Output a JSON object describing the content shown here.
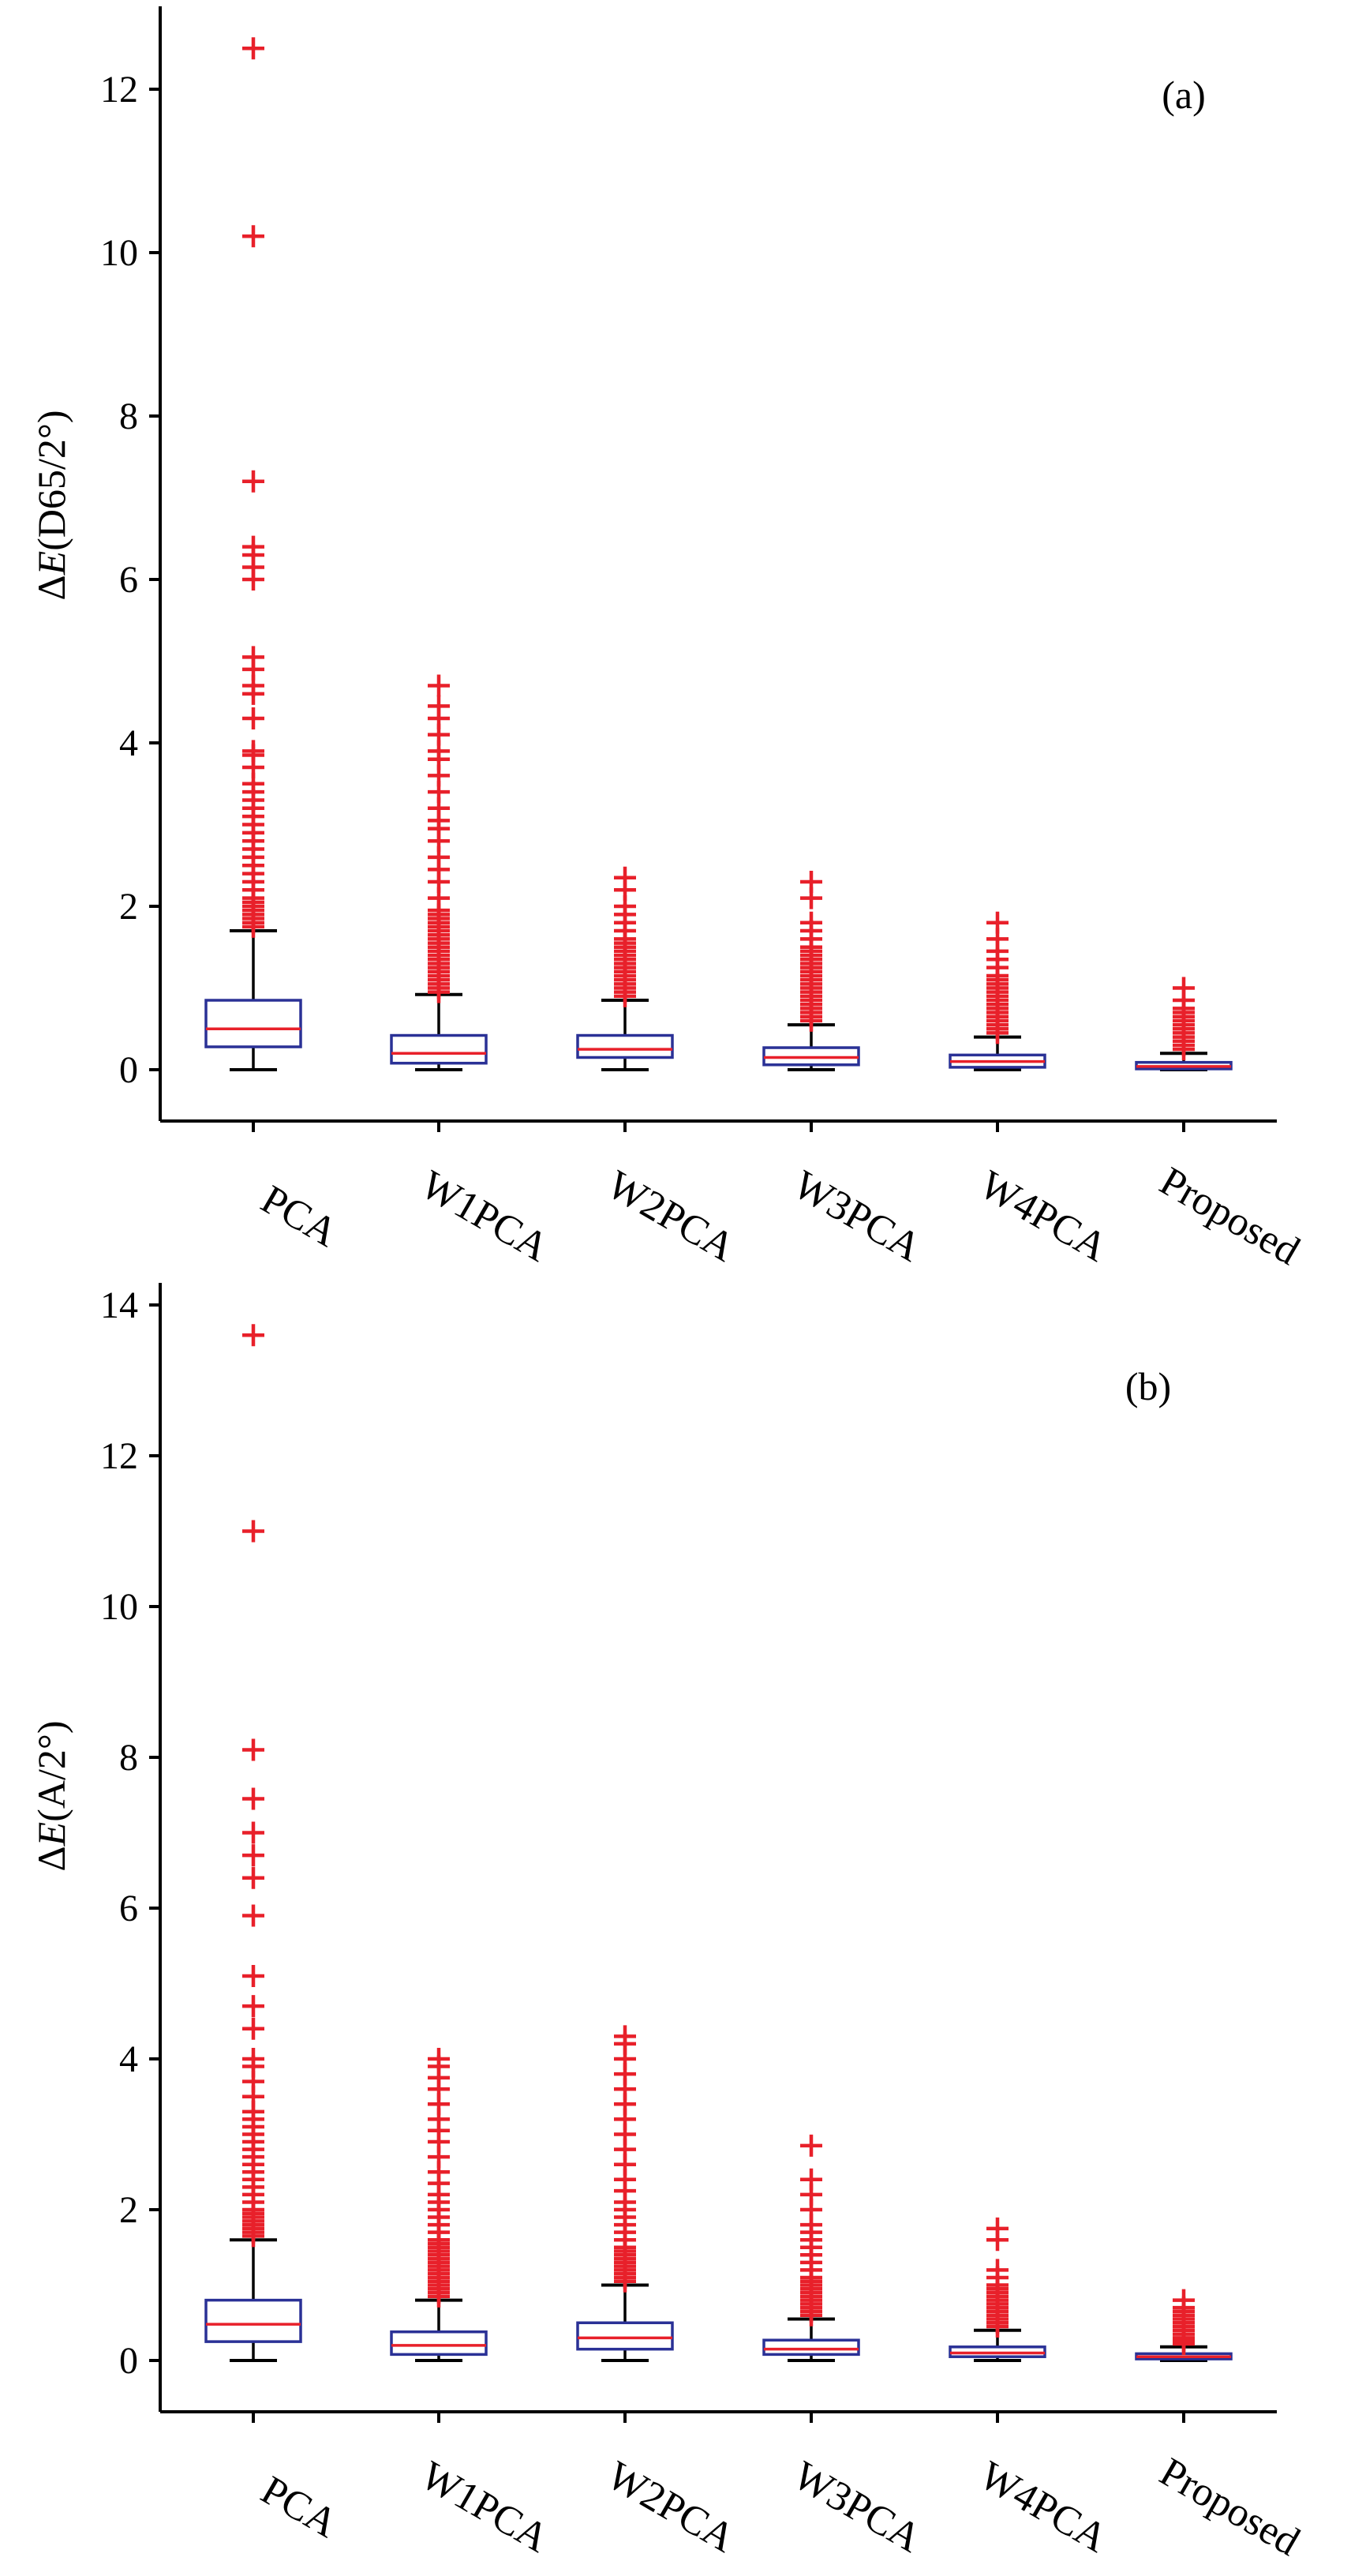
{
  "chart_data": [
    {
      "type": "box",
      "panel_label": "(a)",
      "ylabel_prefix": "Δ",
      "ylabel_var": "E",
      "ylabel_suffix": "(D65/2°)",
      "ylim": [
        0,
        13
      ],
      "yticks": [
        0,
        2,
        4,
        6,
        8,
        10,
        12
      ],
      "categories": [
        "PCA",
        "W1PCA",
        "W2PCA",
        "W3PCA",
        "W4PCA",
        "Proposed"
      ],
      "colors": {
        "box": "#2a3196",
        "median": "#e8202a",
        "outlier": "#e8202a",
        "whisker": "#000000"
      },
      "boxes": [
        {
          "whisker_low": 0,
          "q1": 0.28,
          "median": 0.5,
          "q3": 0.85,
          "whisker_high": 1.7,
          "outliers": [
            1.75,
            1.8,
            1.85,
            1.9,
            1.95,
            2.0,
            2.05,
            2.1,
            2.2,
            2.3,
            2.4,
            2.5,
            2.6,
            2.7,
            2.8,
            2.9,
            3.0,
            3.1,
            3.2,
            3.3,
            3.4,
            3.5,
            3.7,
            3.85,
            3.9,
            4.3,
            4.6,
            4.7,
            4.9,
            5.05,
            6.0,
            6.15,
            6.3,
            6.4,
            7.2,
            10.2,
            12.5
          ]
        },
        {
          "whisker_low": 0,
          "q1": 0.08,
          "median": 0.2,
          "q3": 0.42,
          "whisker_high": 0.92,
          "outliers": [
            0.95,
            1.0,
            1.05,
            1.1,
            1.15,
            1.2,
            1.25,
            1.3,
            1.35,
            1.4,
            1.45,
            1.5,
            1.55,
            1.6,
            1.65,
            1.7,
            1.75,
            1.8,
            1.85,
            1.9,
            1.95,
            2.1,
            2.3,
            2.45,
            2.6,
            2.8,
            2.95,
            3.05,
            3.2,
            3.4,
            3.6,
            3.8,
            3.9,
            4.1,
            4.3,
            4.45,
            4.7
          ]
        },
        {
          "whisker_low": 0,
          "q1": 0.15,
          "median": 0.25,
          "q3": 0.42,
          "whisker_high": 0.85,
          "outliers": [
            0.9,
            0.95,
            1.0,
            1.05,
            1.1,
            1.15,
            1.2,
            1.25,
            1.3,
            1.35,
            1.4,
            1.45,
            1.5,
            1.55,
            1.6,
            1.7,
            1.8,
            1.9,
            2.0,
            2.2,
            2.35
          ]
        },
        {
          "whisker_low": 0,
          "q1": 0.06,
          "median": 0.15,
          "q3": 0.27,
          "whisker_high": 0.55,
          "outliers": [
            0.6,
            0.65,
            0.7,
            0.75,
            0.8,
            0.85,
            0.9,
            0.95,
            1.0,
            1.05,
            1.1,
            1.15,
            1.2,
            1.25,
            1.3,
            1.35,
            1.4,
            1.45,
            1.5,
            1.6,
            1.7,
            1.8,
            2.1,
            2.3
          ]
        },
        {
          "whisker_low": 0,
          "q1": 0.03,
          "median": 0.1,
          "q3": 0.18,
          "whisker_high": 0.4,
          "outliers": [
            0.45,
            0.5,
            0.55,
            0.6,
            0.65,
            0.7,
            0.75,
            0.8,
            0.85,
            0.9,
            0.95,
            1.0,
            1.05,
            1.1,
            1.15,
            1.25,
            1.35,
            1.45,
            1.6,
            1.8
          ]
        },
        {
          "whisker_low": 0,
          "q1": 0.01,
          "median": 0.04,
          "q3": 0.09,
          "whisker_high": 0.2,
          "outliers": [
            0.25,
            0.3,
            0.35,
            0.4,
            0.45,
            0.5,
            0.55,
            0.6,
            0.65,
            0.7,
            0.75,
            0.85,
            1.0
          ]
        }
      ]
    },
    {
      "type": "box",
      "panel_label": "(b)",
      "ylabel_prefix": "Δ",
      "ylabel_var": "E",
      "ylabel_suffix": "(A/2°)",
      "ylim": [
        0,
        14
      ],
      "yticks": [
        0,
        2,
        4,
        6,
        8,
        10,
        12,
        14
      ],
      "categories": [
        "PCA",
        "W1PCA",
        "W2PCA",
        "W3PCA",
        "W4PCA",
        "Proposed"
      ],
      "colors": {
        "box": "#2a3196",
        "median": "#e8202a",
        "outlier": "#e8202a",
        "whisker": "#000000"
      },
      "boxes": [
        {
          "whisker_low": 0,
          "q1": 0.25,
          "median": 0.48,
          "q3": 0.8,
          "whisker_high": 1.6,
          "outliers": [
            1.65,
            1.7,
            1.75,
            1.8,
            1.85,
            1.9,
            1.95,
            2.0,
            2.1,
            2.2,
            2.3,
            2.4,
            2.5,
            2.6,
            2.7,
            2.8,
            2.9,
            3.0,
            3.1,
            3.2,
            3.3,
            3.5,
            3.7,
            3.9,
            4.0,
            4.4,
            4.7,
            5.1,
            5.9,
            6.4,
            6.7,
            7.0,
            7.45,
            8.1,
            11.0,
            13.6
          ]
        },
        {
          "whisker_low": 0,
          "q1": 0.08,
          "median": 0.2,
          "q3": 0.38,
          "whisker_high": 0.8,
          "outliers": [
            0.85,
            0.9,
            0.95,
            1.0,
            1.05,
            1.1,
            1.15,
            1.2,
            1.25,
            1.3,
            1.35,
            1.4,
            1.45,
            1.5,
            1.55,
            1.6,
            1.7,
            1.8,
            1.9,
            2.0,
            2.1,
            2.2,
            2.35,
            2.5,
            2.7,
            2.9,
            3.05,
            3.2,
            3.4,
            3.6,
            3.75,
            3.9,
            4.0
          ]
        },
        {
          "whisker_low": 0,
          "q1": 0.15,
          "median": 0.3,
          "q3": 0.5,
          "whisker_high": 1.0,
          "outliers": [
            1.05,
            1.1,
            1.15,
            1.2,
            1.25,
            1.3,
            1.35,
            1.4,
            1.45,
            1.5,
            1.6,
            1.7,
            1.8,
            1.9,
            2.0,
            2.1,
            2.25,
            2.4,
            2.6,
            2.8,
            3.0,
            3.2,
            3.4,
            3.6,
            3.8,
            4.0,
            4.2,
            4.3
          ]
        },
        {
          "whisker_low": 0,
          "q1": 0.08,
          "median": 0.15,
          "q3": 0.27,
          "whisker_high": 0.55,
          "outliers": [
            0.6,
            0.65,
            0.7,
            0.75,
            0.8,
            0.85,
            0.9,
            0.95,
            1.0,
            1.05,
            1.1,
            1.2,
            1.3,
            1.4,
            1.5,
            1.6,
            1.7,
            1.8,
            2.0,
            2.2,
            2.4,
            2.85
          ]
        },
        {
          "whisker_low": 0,
          "q1": 0.05,
          "median": 0.1,
          "q3": 0.18,
          "whisker_high": 0.4,
          "outliers": [
            0.45,
            0.5,
            0.55,
            0.6,
            0.65,
            0.7,
            0.75,
            0.8,
            0.85,
            0.9,
            0.95,
            1.0,
            1.1,
            1.2,
            1.6,
            1.75
          ]
        },
        {
          "whisker_low": 0,
          "q1": 0.02,
          "median": 0.05,
          "q3": 0.09,
          "whisker_high": 0.18,
          "outliers": [
            0.22,
            0.26,
            0.3,
            0.35,
            0.4,
            0.45,
            0.5,
            0.55,
            0.6,
            0.65,
            0.7,
            0.8
          ]
        }
      ]
    }
  ]
}
